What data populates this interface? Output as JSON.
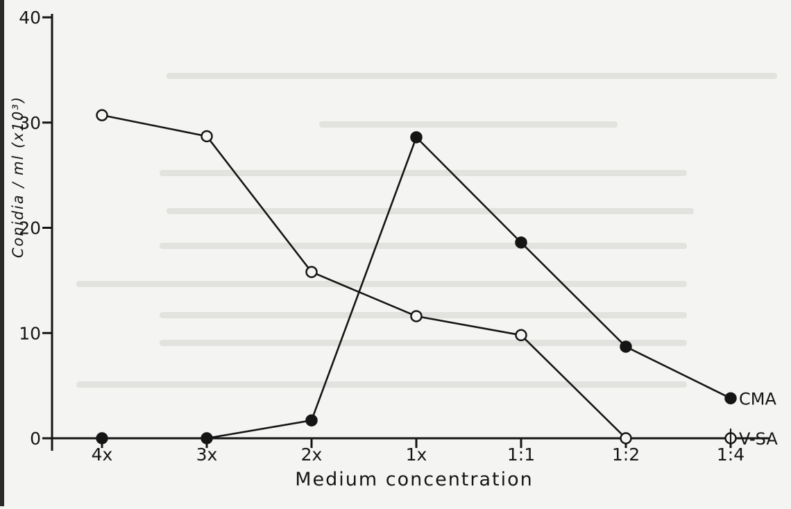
{
  "chart_data": {
    "type": "line",
    "xlabel": "Medium concentration",
    "ylabel": "Conidia / ml (x10³)",
    "categories": [
      "4x",
      "3x",
      "2x",
      "1x",
      "1:1",
      "1:2",
      "1:4"
    ],
    "y_ticks": [
      "0",
      "10",
      "20",
      "30",
      "40"
    ],
    "ylim": [
      0,
      40
    ],
    "grid": false,
    "legend": "direct labels at right end of each line",
    "series": [
      {
        "name": "CMA",
        "marker": "filled-circle",
        "values": [
          0,
          0,
          1.7,
          28.6,
          18.6,
          8.7,
          3.8
        ]
      },
      {
        "name": "V-SA",
        "marker": "open-circle",
        "values": [
          30.7,
          28.7,
          15.8,
          11.6,
          9.8,
          0,
          0
        ]
      }
    ],
    "colors": {
      "ink": "#151515",
      "paper": "#f4f4f2"
    }
  }
}
